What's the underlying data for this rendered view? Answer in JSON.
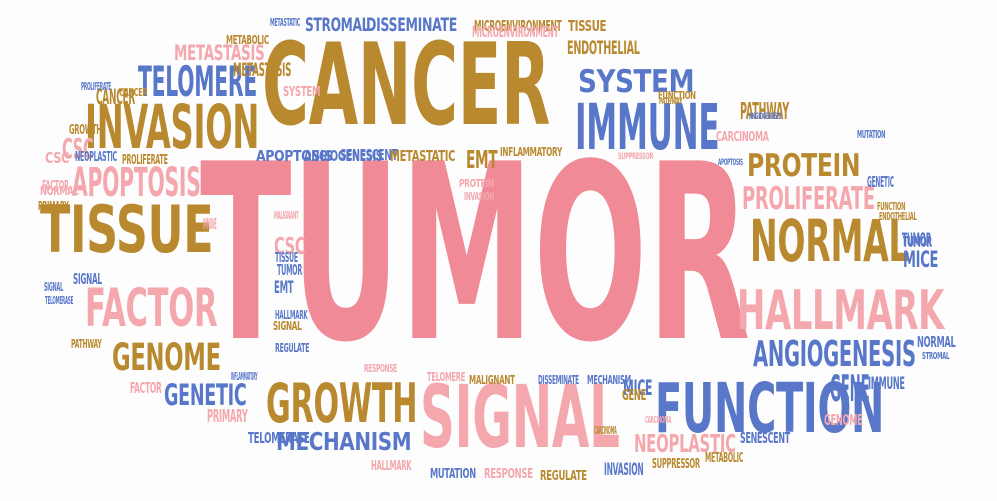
{
  "colors": {
    "pink": "#f08a96",
    "lightpink": "#f4a7ad",
    "gold": "#b9892f",
    "blue": "#5877c9"
  },
  "words": [
    {
      "text": "TUMOR",
      "color": "pink"
    },
    {
      "text": "CANCER",
      "color": "gold"
    },
    {
      "text": "SIGNAL",
      "color": "lightpink"
    },
    {
      "text": "TISSUE",
      "color": "gold"
    },
    {
      "text": "FUNCTION",
      "color": "blue"
    },
    {
      "text": "INVASION",
      "color": "gold"
    },
    {
      "text": "IMMUNE",
      "color": "blue"
    },
    {
      "text": "GROWTH",
      "color": "gold"
    },
    {
      "text": "HALLMARK",
      "color": "lightpink"
    },
    {
      "text": "FACTOR",
      "color": "lightpink"
    },
    {
      "text": "APOPTOSIS",
      "color": "lightpink"
    },
    {
      "text": "NORMAL",
      "color": "gold"
    },
    {
      "text": "TELOMERE",
      "color": "blue"
    },
    {
      "text": "PROLIFERATE",
      "color": "lightpink"
    },
    {
      "text": "PROTEIN",
      "color": "gold"
    },
    {
      "text": "ANGIOGENESIS",
      "color": "blue"
    },
    {
      "text": "GENOME",
      "color": "gold"
    },
    {
      "text": "SYSTEM",
      "color": "blue"
    },
    {
      "text": "GENETIC",
      "color": "blue"
    },
    {
      "text": "MECHANISM",
      "color": "blue"
    },
    {
      "text": "NEOPLASTIC",
      "color": "lightpink"
    },
    {
      "text": "METASTASIS",
      "color": "lightpink"
    },
    {
      "text": "STROMAL",
      "color": "blue"
    },
    {
      "text": "DISSEMINATE",
      "color": "blue"
    },
    {
      "text": "MICROENVIRONMENT",
      "color": "gold"
    },
    {
      "text": "TISSUE",
      "color": "gold"
    },
    {
      "text": "ENDOTHELIAL",
      "color": "gold"
    },
    {
      "text": "EMT",
      "color": "gold"
    },
    {
      "text": "INFLAMMATORY",
      "color": "gold"
    },
    {
      "text": "CSC",
      "color": "lightpink"
    },
    {
      "text": "MICE",
      "color": "blue"
    },
    {
      "text": "GENE",
      "color": "blue"
    },
    {
      "text": "TUMOR",
      "color": "blue"
    },
    {
      "text": "CANCER",
      "color": "gold"
    },
    {
      "text": "CSC",
      "color": "lightpink"
    },
    {
      "text": "EMT",
      "color": "blue"
    },
    {
      "text": "METABOLIC",
      "color": "gold"
    },
    {
      "text": "METASTATIC",
      "color": "blue"
    },
    {
      "text": "PATHWAY",
      "color": "gold"
    },
    {
      "text": "CARCINOMA",
      "color": "lightpink"
    },
    {
      "text": "PRIMARY",
      "color": "lightpink"
    },
    {
      "text": "SIGNAL",
      "color": "blue"
    },
    {
      "text": "FACTOR",
      "color": "lightpink"
    },
    {
      "text": "TELOMERASE",
      "color": "blue"
    },
    {
      "text": "HALLMARK",
      "color": "lightpink"
    },
    {
      "text": "MUTATION",
      "color": "blue"
    },
    {
      "text": "RESPONSE",
      "color": "lightpink"
    },
    {
      "text": "REGULATE",
      "color": "gold"
    },
    {
      "text": "INVASION",
      "color": "blue"
    },
    {
      "text": "SUPPRESSOR",
      "color": "gold"
    },
    {
      "text": "METABOLIC",
      "color": "gold"
    },
    {
      "text": "SENESCENT",
      "color": "blue"
    },
    {
      "text": "GENOME",
      "color": "lightpink"
    },
    {
      "text": "IMMUNE",
      "color": "blue"
    },
    {
      "text": "STROMAL",
      "color": "blue"
    },
    {
      "text": "NORMAL",
      "color": "blue"
    },
    {
      "text": "MICE",
      "color": "blue"
    },
    {
      "text": "TUMOR",
      "color": "blue"
    },
    {
      "text": "ENDOTHELIAL",
      "color": "gold"
    },
    {
      "text": "FUNCTION",
      "color": "gold"
    },
    {
      "text": "GENETIC",
      "color": "blue"
    },
    {
      "text": "MUTATION",
      "color": "blue"
    },
    {
      "text": "ANGIOGENESIS",
      "color": "blue"
    },
    {
      "text": "APOPTOSIS",
      "color": "blue"
    },
    {
      "text": "FUNCTION",
      "color": "gold"
    },
    {
      "text": "PATHWAY",
      "color": "gold"
    },
    {
      "text": "CARCINOMA",
      "color": "lightpink"
    },
    {
      "text": "GROWTH",
      "color": "gold"
    },
    {
      "text": "CSC",
      "color": "lightpink"
    },
    {
      "text": "NEOPLASTIC",
      "color": "blue"
    },
    {
      "text": "PROLIFERATE",
      "color": "gold"
    },
    {
      "text": "FACTOR",
      "color": "lightpink"
    },
    {
      "text": "NORMAL",
      "color": "lightpink"
    },
    {
      "text": "PRIMARY",
      "color": "gold"
    },
    {
      "text": "SIGNAL",
      "color": "blue"
    },
    {
      "text": "TELOMERASE",
      "color": "blue"
    },
    {
      "text": "PATHWAY",
      "color": "gold"
    },
    {
      "text": "CANCER",
      "color": "gold"
    },
    {
      "text": "PROLIFERATE",
      "color": "blue"
    },
    {
      "text": "METASTASIS",
      "color": "gold"
    },
    {
      "text": "SYSTEM",
      "color": "lightpink"
    },
    {
      "text": "APOPTOSIS",
      "color": "blue"
    },
    {
      "text": "ANGIOGENESIS",
      "color": "blue"
    },
    {
      "text": "SENESCENT",
      "color": "blue"
    },
    {
      "text": "METASTATIC",
      "color": "gold"
    },
    {
      "text": "SUPPRESSOR",
      "color": "lightpink"
    },
    {
      "text": "PROTEIN",
      "color": "lightpink"
    },
    {
      "text": "INVASION",
      "color": "lightpink"
    },
    {
      "text": "MALIGNANT",
      "color": "lightpink"
    },
    {
      "text": "IMMUNE",
      "color": "lightpink"
    },
    {
      "text": "TISSUE",
      "color": "blue"
    },
    {
      "text": "TUMOR",
      "color": "blue"
    },
    {
      "text": "HALLMARK",
      "color": "blue"
    },
    {
      "text": "SIGNAL",
      "color": "gold"
    },
    {
      "text": "REGULATE",
      "color": "blue"
    },
    {
      "text": "INFLAMMATORY",
      "color": "blue"
    },
    {
      "text": "RESPONSE",
      "color": "lightpink"
    },
    {
      "text": "TELOMERE",
      "color": "lightpink"
    },
    {
      "text": "MALIGNANT",
      "color": "gold"
    },
    {
      "text": "DISSEMINATE",
      "color": "blue"
    },
    {
      "text": "MECHANISM",
      "color": "blue"
    },
    {
      "text": "CARCINOMA",
      "color": "gold"
    },
    {
      "text": "MICROENVIRONMENT",
      "color": "lightpink"
    },
    {
      "text": "GENE",
      "color": "gold"
    }
  ]
}
